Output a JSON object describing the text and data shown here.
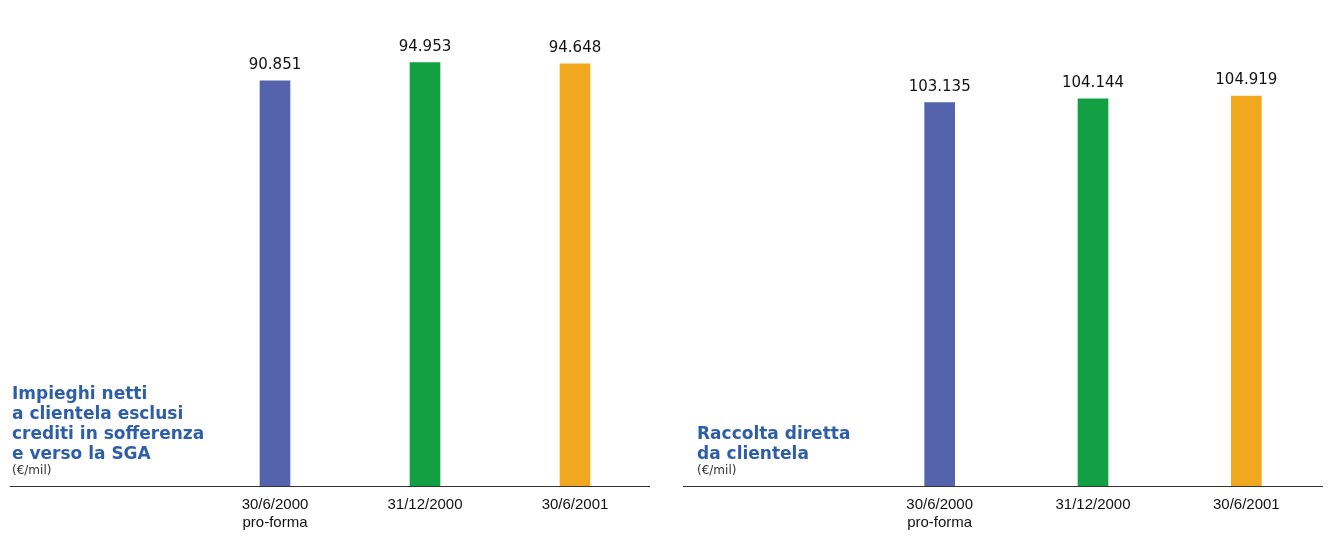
{
  "chart_data": [
    {
      "type": "bar",
      "title": "Impieghi netti\na clientela esclusi\ncrediti in sofferenza\ne verso la SGA",
      "ylabel": "(€/mil)",
      "categories": [
        "30/6/2000\npro-forma",
        "31/12/2000",
        "30/6/2001"
      ],
      "values": [
        90851,
        94953,
        94648
      ],
      "value_labels": [
        "90.851",
        "94.953",
        "94.648"
      ],
      "colors": [
        "#5563ad",
        "#13a044",
        "#f2a81e"
      ],
      "tick_labels": "x",
      "grid": false,
      "legend": false
    },
    {
      "type": "bar",
      "title": "Raccolta diretta\nda clientela",
      "ylabel": "(€/mil)",
      "categories": [
        "30/6/2000\npro-forma",
        "31/12/2000",
        "30/6/2001"
      ],
      "values": [
        103135,
        104144,
        104919
      ],
      "value_labels": [
        "103.135",
        "104.144",
        "104.919"
      ],
      "colors": [
        "#5563ad",
        "#13a044",
        "#f2a81e"
      ],
      "tick_labels": "x",
      "grid": false,
      "legend": false
    }
  ]
}
